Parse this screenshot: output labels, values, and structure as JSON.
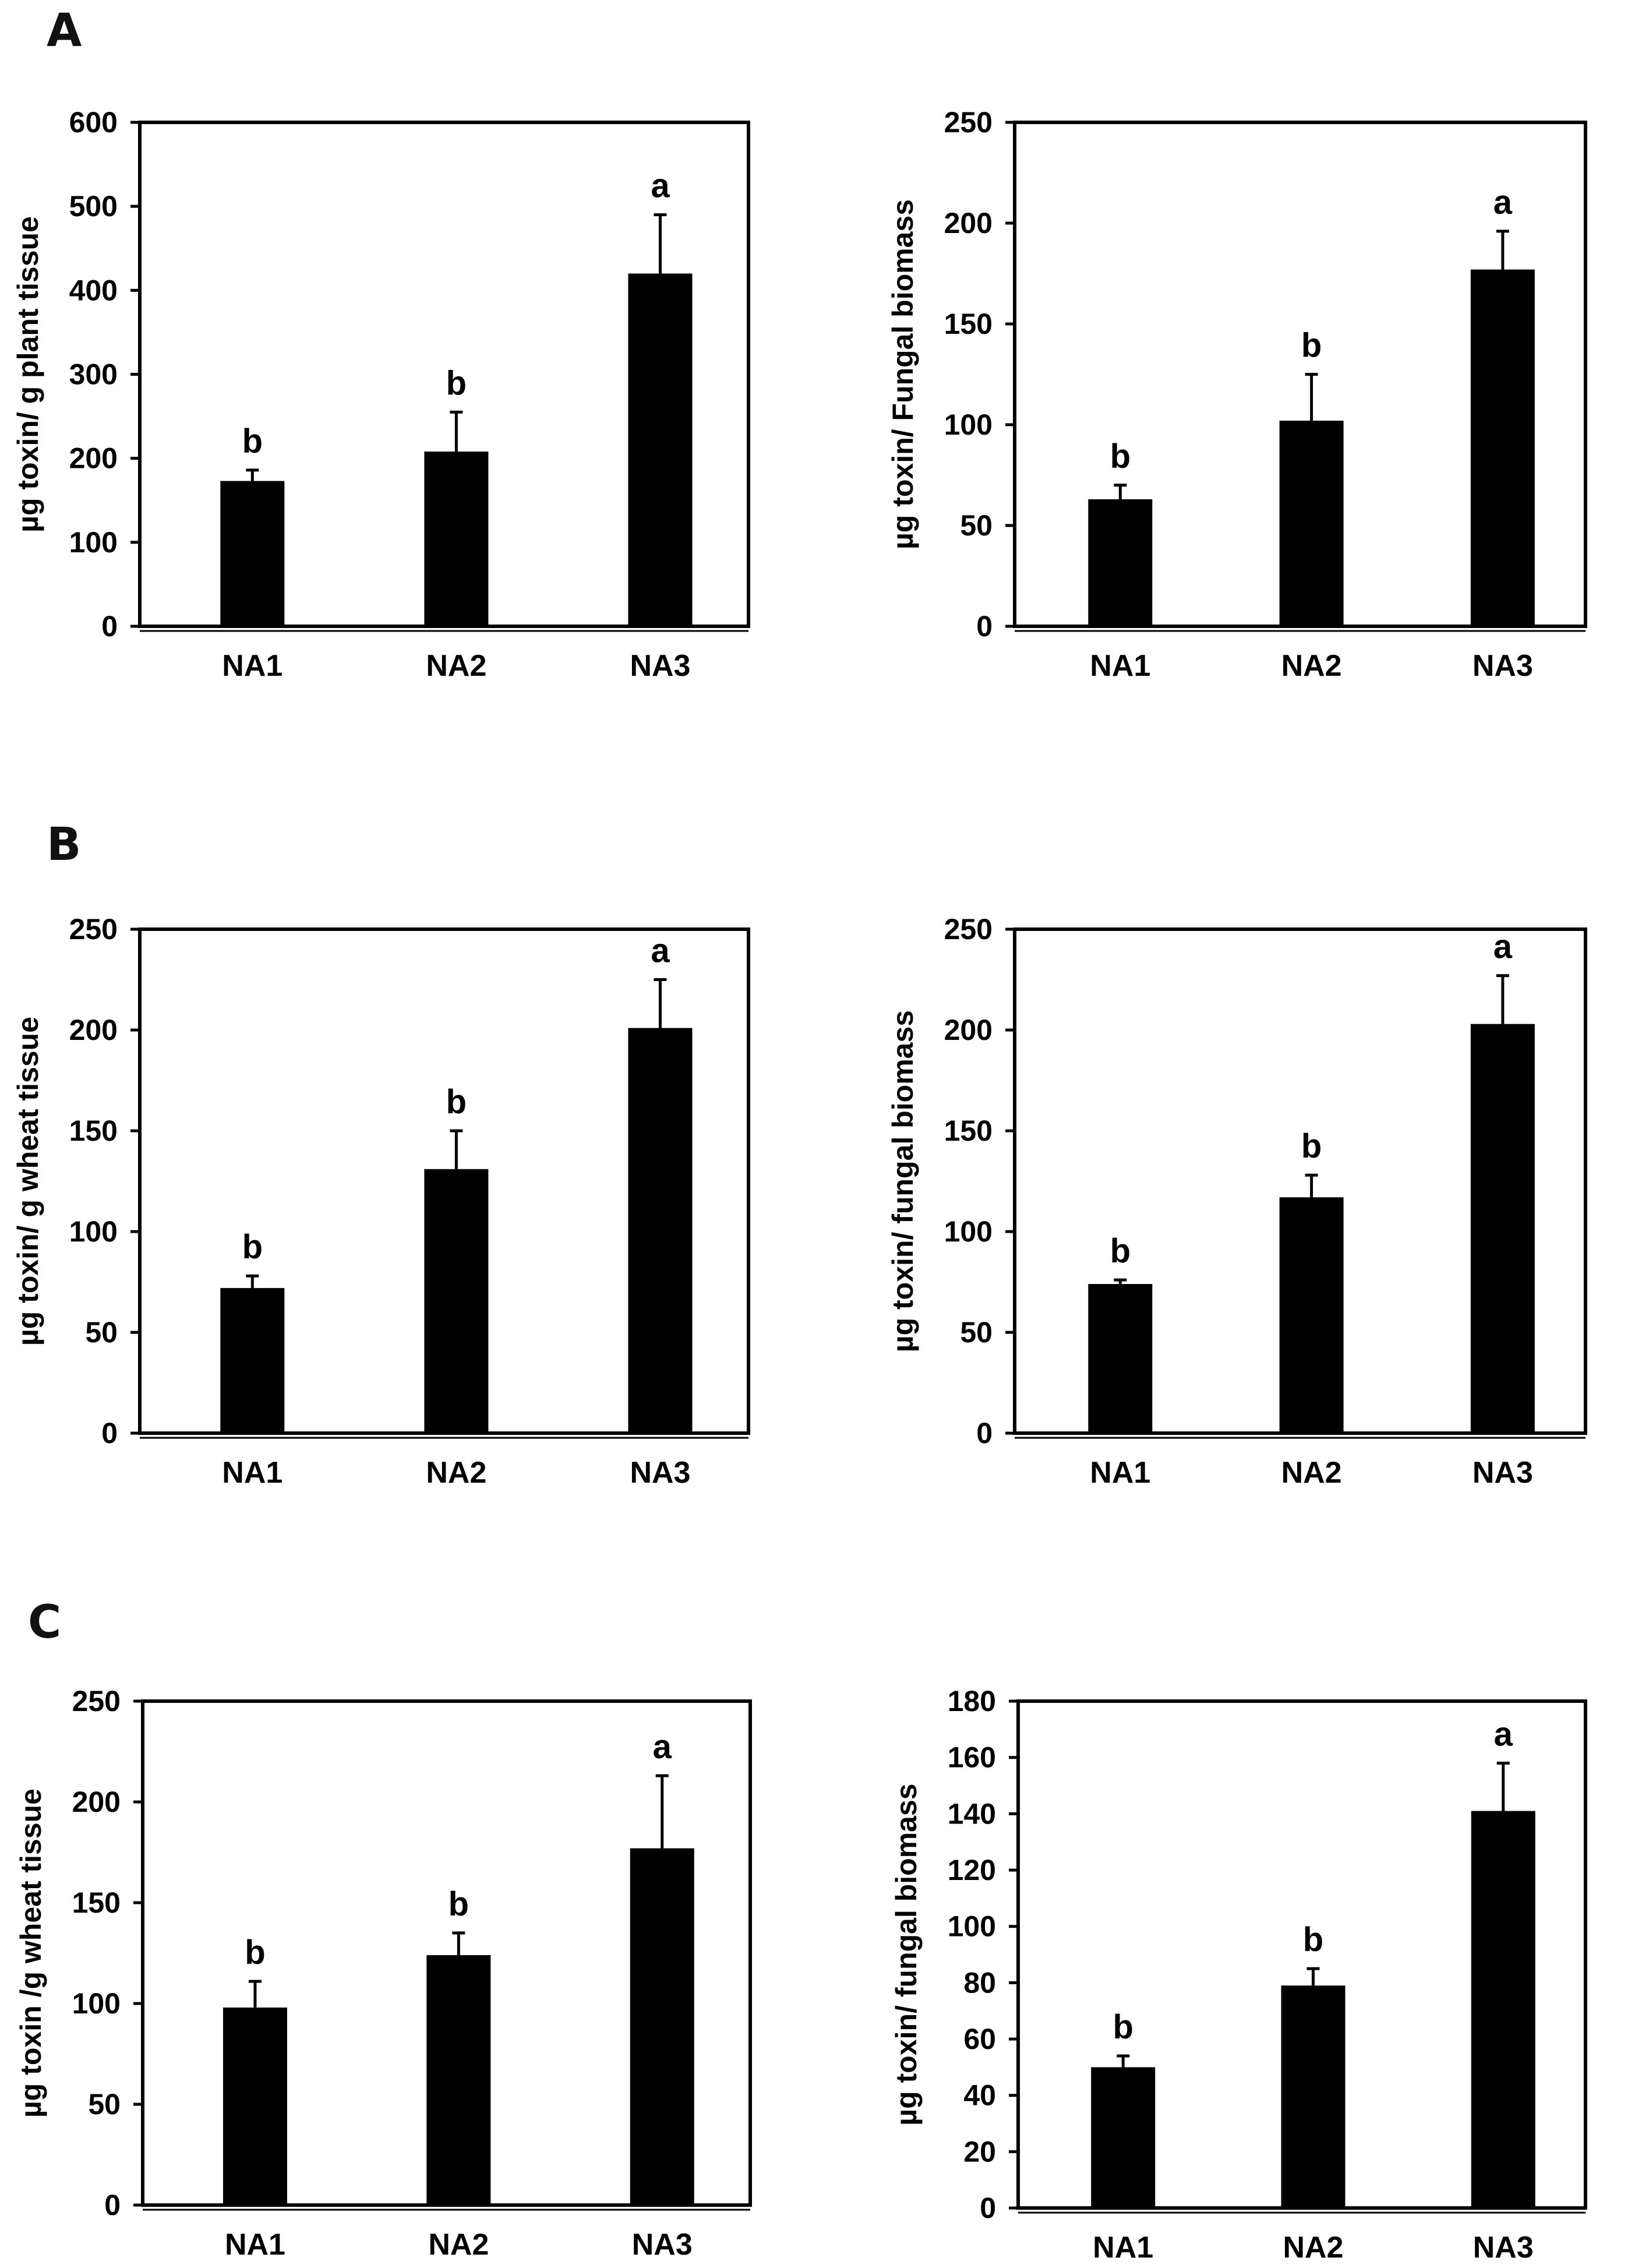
{
  "panels": [
    {
      "letter": "A"
    },
    {
      "letter": "B"
    },
    {
      "letter": "C"
    }
  ],
  "colors": {
    "bar": "#000000",
    "axis": "#000000",
    "background": "#ffffff"
  },
  "chart_data": [
    {
      "type": "bar",
      "panel": "A",
      "position": "left",
      "categories": [
        "NA1",
        "NA2",
        "NA3"
      ],
      "values": [
        173,
        208,
        420
      ],
      "errors": [
        13,
        47,
        70
      ],
      "significance": [
        "b",
        "b",
        "a"
      ],
      "ylabel": "µg toxin/ g plant tissue",
      "ylim": [
        0,
        600
      ],
      "yticks": [
        0,
        100,
        200,
        300,
        400,
        500,
        600
      ],
      "grid": false,
      "legend": "none"
    },
    {
      "type": "bar",
      "panel": "A",
      "position": "right",
      "categories": [
        "NA1",
        "NA2",
        "NA3"
      ],
      "values": [
        63,
        102,
        177
      ],
      "errors": [
        7,
        23,
        19
      ],
      "significance": [
        "b",
        "b",
        "a"
      ],
      "ylabel": "µg toxin/ Fungal biomass",
      "ylim": [
        0,
        250
      ],
      "yticks": [
        0,
        50,
        100,
        150,
        200,
        250
      ],
      "grid": false,
      "legend": "none"
    },
    {
      "type": "bar",
      "panel": "B",
      "position": "left",
      "categories": [
        "NA1",
        "NA2",
        "NA3"
      ],
      "values": [
        72,
        131,
        201
      ],
      "errors": [
        6,
        19,
        24
      ],
      "significance": [
        "b",
        "b",
        "a"
      ],
      "ylabel": "µg toxin/ g wheat tissue",
      "ylim": [
        0,
        250
      ],
      "yticks": [
        0,
        50,
        100,
        150,
        200,
        250
      ],
      "grid": false,
      "legend": "none"
    },
    {
      "type": "bar",
      "panel": "B",
      "position": "right",
      "categories": [
        "NA1",
        "NA2",
        "NA3"
      ],
      "values": [
        74,
        117,
        203
      ],
      "errors": [
        2,
        11,
        24
      ],
      "significance": [
        "b",
        "b",
        "a"
      ],
      "ylabel": "µg toxin/ fungal biomass",
      "ylim": [
        0,
        250
      ],
      "yticks": [
        0,
        50,
        100,
        150,
        200,
        250
      ],
      "grid": false,
      "legend": "none"
    },
    {
      "type": "bar",
      "panel": "C",
      "position": "left",
      "categories": [
        "NA1",
        "NA2",
        "NA3"
      ],
      "values": [
        98,
        124,
        177
      ],
      "errors": [
        13,
        11,
        36
      ],
      "significance": [
        "b",
        "b",
        "a"
      ],
      "ylabel": "µg toxin /g wheat tissue",
      "ylim": [
        0,
        250
      ],
      "yticks": [
        0,
        50,
        100,
        150,
        200,
        250
      ],
      "grid": false,
      "legend": "none"
    },
    {
      "type": "bar",
      "panel": "C",
      "position": "right",
      "categories": [
        "NA1",
        "NA2",
        "NA3"
      ],
      "values": [
        50,
        79,
        141
      ],
      "errors": [
        4,
        6,
        17
      ],
      "significance": [
        "b",
        "b",
        "a"
      ],
      "ylabel": "µg toxin/ fungal biomass",
      "ylim": [
        0,
        180
      ],
      "yticks": [
        0,
        20,
        40,
        60,
        80,
        100,
        120,
        140,
        160,
        180
      ],
      "grid": false,
      "legend": "none"
    }
  ]
}
